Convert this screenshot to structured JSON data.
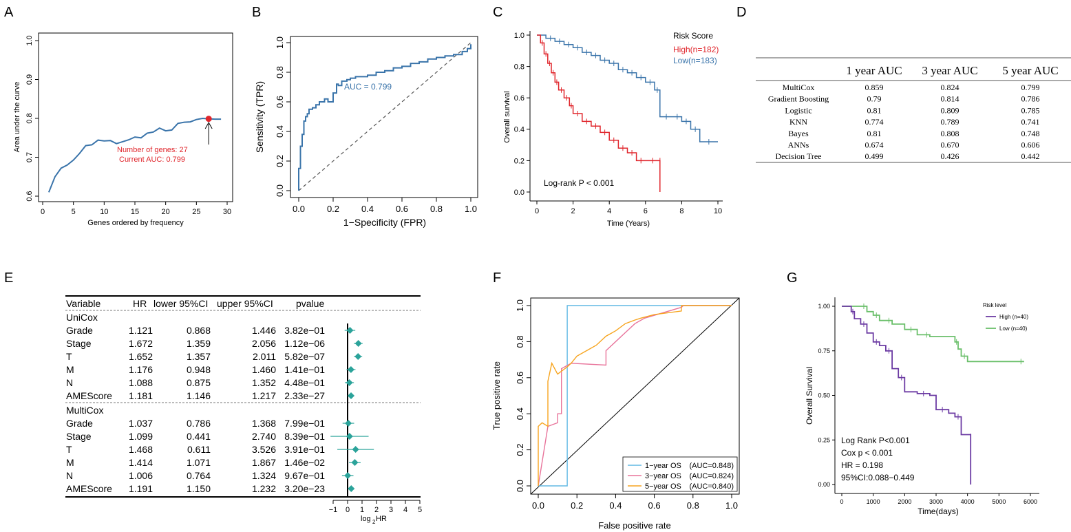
{
  "panel_letters": [
    "A",
    "B",
    "C",
    "D",
    "E",
    "F",
    "G"
  ],
  "colors": {
    "blue": "#3A74AA",
    "red": "#E0262C",
    "teal": "#2BA39A",
    "orange": "#F7A41E",
    "pink": "#E8739A",
    "cyan": "#61B9E4",
    "purple": "#6C3BA3",
    "green": "#6ABF6A"
  },
  "chart_data": [
    {
      "id": "A",
      "type": "line",
      "xlabel": "Genes ordered by frequency",
      "ylabel": "Area under the curve",
      "xlim": [
        0,
        30
      ],
      "ylim": [
        0.6,
        1.0
      ],
      "xticks": [
        "0",
        "5",
        "10",
        "15",
        "20",
        "25",
        "30"
      ],
      "yticks": [
        "0.6",
        "0.7",
        "0.8",
        "0.9",
        "1.0"
      ],
      "x": [
        1,
        2,
        3,
        4,
        5,
        6,
        7,
        8,
        9,
        10,
        11,
        12,
        13,
        14,
        15,
        16,
        17,
        18,
        19,
        20,
        21,
        22,
        23,
        24,
        25,
        26,
        27,
        28,
        29
      ],
      "y": [
        0.61,
        0.65,
        0.672,
        0.68,
        0.693,
        0.71,
        0.73,
        0.732,
        0.744,
        0.742,
        0.743,
        0.735,
        0.74,
        0.745,
        0.752,
        0.75,
        0.762,
        0.765,
        0.775,
        0.768,
        0.77,
        0.787,
        0.79,
        0.791,
        0.797,
        0.8,
        0.799,
        0.798,
        0.798
      ],
      "highlight": {
        "x": 27,
        "y": 0.799
      },
      "annotation_1": "Number of genes: 27",
      "annotation_2": "Current AUC: 0.799"
    },
    {
      "id": "B",
      "type": "line",
      "xlabel": "1−Specificity (FPR)",
      "ylabel": "Sensitivity (TPR)",
      "xlim": [
        0,
        1
      ],
      "ylim": [
        0,
        1
      ],
      "xticks": [
        "0.0",
        "0.2",
        "0.4",
        "0.6",
        "0.8",
        "1.0"
      ],
      "yticks": [
        "0.0",
        "0.2",
        "0.4",
        "0.6",
        "0.8",
        "1.0"
      ],
      "roc_x": [
        0,
        0,
        0.01,
        0.01,
        0.02,
        0.03,
        0.03,
        0.04,
        0.05,
        0.06,
        0.08,
        0.1,
        0.12,
        0.15,
        0.17,
        0.2,
        0.22,
        0.23,
        0.25,
        0.28,
        0.3,
        0.33,
        0.36,
        0.4,
        0.45,
        0.5,
        0.55,
        0.6,
        0.65,
        0.7,
        0.75,
        0.8,
        0.85,
        0.9,
        0.95,
        0.98,
        1.0
      ],
      "roc_y": [
        0,
        0.15,
        0.2,
        0.3,
        0.38,
        0.43,
        0.47,
        0.5,
        0.52,
        0.55,
        0.56,
        0.58,
        0.6,
        0.62,
        0.6,
        0.66,
        0.72,
        0.71,
        0.74,
        0.75,
        0.76,
        0.77,
        0.77,
        0.78,
        0.8,
        0.81,
        0.83,
        0.84,
        0.86,
        0.87,
        0.89,
        0.9,
        0.91,
        0.92,
        0.94,
        0.96,
        0.99
      ],
      "annotation": "AUC = 0.799"
    },
    {
      "id": "C",
      "type": "line",
      "title": "Risk Score",
      "xlabel": "Time (Years)",
      "ylabel": "Overall survival",
      "xlim": [
        0,
        10
      ],
      "ylim": [
        0,
        1
      ],
      "xticks": [
        "0",
        "2",
        "4",
        "6",
        "8",
        "10"
      ],
      "yticks": [
        "0.0",
        "0.2",
        "0.4",
        "0.6",
        "0.8",
        "1.0"
      ],
      "legend": [
        "High(n=182)",
        "Low(n=183)"
      ],
      "annotation": "Log-rank P < 0.001",
      "series": [
        {
          "name": "High(n=182)",
          "x": [
            0,
            0.2,
            0.4,
            0.6,
            0.8,
            1,
            1.2,
            1.5,
            1.8,
            2,
            2.5,
            3,
            3.5,
            4,
            4.5,
            5,
            5.5,
            6,
            6.8,
            6.8
          ],
          "y": [
            1,
            0.95,
            0.88,
            0.82,
            0.76,
            0.7,
            0.65,
            0.6,
            0.55,
            0.5,
            0.45,
            0.42,
            0.38,
            0.33,
            0.28,
            0.25,
            0.2,
            0.2,
            0.2,
            0
          ]
        },
        {
          "name": "Low(n=183)",
          "x": [
            0,
            0.5,
            1,
            1.5,
            2,
            2.5,
            3,
            3.5,
            4,
            4.5,
            5,
            5.5,
            6,
            6.5,
            6.8,
            7.5,
            8,
            8.5,
            9,
            10
          ],
          "y": [
            1,
            0.98,
            0.96,
            0.94,
            0.92,
            0.89,
            0.87,
            0.84,
            0.82,
            0.78,
            0.76,
            0.73,
            0.7,
            0.65,
            0.48,
            0.48,
            0.45,
            0.4,
            0.32,
            0.32
          ]
        }
      ]
    },
    {
      "id": "D",
      "type": "table",
      "columns": [
        "",
        "1 year AUC",
        "3 year AUC",
        "5 year AUC"
      ],
      "rows": [
        [
          "MultiCox",
          "0.859",
          "0.824",
          "0.799"
        ],
        [
          "Gradient Boosting",
          "0.79",
          "0.814",
          "0.786"
        ],
        [
          "Logistic",
          "0.81",
          "0.809",
          "0.785"
        ],
        [
          "KNN",
          "0.774",
          "0.789",
          "0.741"
        ],
        [
          "Bayes",
          "0.81",
          "0.808",
          "0.748"
        ],
        [
          "ANNs",
          "0.674",
          "0.670",
          "0.606"
        ],
        [
          "Decision Tree",
          "0.499",
          "0.426",
          "0.442"
        ]
      ]
    },
    {
      "id": "E",
      "type": "table",
      "columns": [
        "Variable",
        "HR",
        "lower 95%CI",
        "upper 95%CI",
        "pvalue"
      ],
      "groups": [
        {
          "name": "UniCox",
          "rows": [
            {
              "var": "Grade",
              "hr": "1.121",
              "lo": "0.868",
              "hi": "1.446",
              "p": "3.82e−01",
              "log2hr": 0.165,
              "log2lo": -0.204,
              "log2hi": 0.532
            },
            {
              "var": "Stage",
              "hr": "1.672",
              "lo": "1.359",
              "hi": "2.056",
              "p": "1.12e−06",
              "log2hr": 0.742,
              "log2lo": 0.442,
              "log2hi": 1.04
            },
            {
              "var": "T",
              "hr": "1.652",
              "lo": "1.357",
              "hi": "2.011",
              "p": "5.82e−07",
              "log2hr": 0.724,
              "log2lo": 0.44,
              "log2hi": 1.008
            },
            {
              "var": "M",
              "hr": "1.176",
              "lo": "0.948",
              "hi": "1.460",
              "p": "1.41e−01",
              "log2hr": 0.234,
              "log2lo": -0.077,
              "log2hi": 0.546
            },
            {
              "var": "N",
              "hr": "1.088",
              "lo": "0.875",
              "hi": "1.352",
              "p": "4.48e−01",
              "log2hr": 0.122,
              "log2lo": -0.193,
              "log2hi": 0.435
            },
            {
              "var": "AMEScore",
              "hr": "1.181",
              "lo": "1.146",
              "hi": "1.217",
              "p": "2.33e−27",
              "log2hr": 0.24,
              "log2lo": 0.197,
              "log2hi": 0.283
            }
          ]
        },
        {
          "name": "MultiCox",
          "rows": [
            {
              "var": "Grade",
              "hr": "1.037",
              "lo": "0.786",
              "hi": "1.368",
              "p": "7.99e−01",
              "log2hr": 0.052,
              "log2lo": -0.347,
              "log2hi": 0.452
            },
            {
              "var": "Stage",
              "hr": "1.099",
              "lo": "0.441",
              "hi": "2.740",
              "p": "8.39e−01",
              "log2hr": 0.136,
              "log2lo": -1.181,
              "log2hi": 1.454
            },
            {
              "var": "T",
              "hr": "1.468",
              "lo": "0.611",
              "hi": "3.526",
              "p": "3.91e−01",
              "log2hr": 0.554,
              "log2lo": -0.711,
              "log2hi": 1.818
            },
            {
              "var": "M",
              "hr": "1.414",
              "lo": "1.071",
              "hi": "1.867",
              "p": "1.46e−02",
              "log2hr": 0.5,
              "log2lo": 0.099,
              "log2hi": 0.901
            },
            {
              "var": "N",
              "hr": "1.006",
              "lo": "0.764",
              "hi": "1.324",
              "p": "9.67e−01",
              "log2hr": 0.009,
              "log2lo": -0.388,
              "log2hi": 0.405
            },
            {
              "var": "AMEScore",
              "hr": "1.191",
              "lo": "1.150",
              "hi": "1.232",
              "p": "3.20e−23",
              "log2hr": 0.252,
              "log2lo": 0.202,
              "log2hi": 0.301
            }
          ]
        }
      ],
      "xticks": [
        "−1",
        "0",
        "1",
        "2",
        "3",
        "4",
        "5"
      ],
      "xlabel_main": "log",
      "xlabel_sub": "2",
      "xlabel_tail": " HR"
    },
    {
      "id": "F",
      "type": "line",
      "xlabel": "False positive rate",
      "ylabel": "True positive rate",
      "xlim": [
        0,
        1
      ],
      "ylim": [
        0,
        1
      ],
      "xticks": [
        "0.0",
        "0.2",
        "0.4",
        "0.6",
        "0.8",
        "1.0"
      ],
      "yticks": [
        "0.0",
        "0.2",
        "0.4",
        "0.6",
        "0.8",
        "1.0"
      ],
      "series": [
        {
          "name": "1−year OS",
          "auc": "(AUC=0.848)",
          "x": [
            0,
            0.15,
            0.15,
            0.75,
            1.0
          ],
          "y": [
            0,
            0,
            1,
            1,
            1
          ]
        },
        {
          "name": "3−year OS",
          "auc": "(AUC=0.824)",
          "x": [
            0,
            0.05,
            0.1,
            0.1,
            0.12,
            0.12,
            0.17,
            0.17,
            0.35,
            0.35,
            0.45,
            0.5,
            0.5,
            0.55,
            0.74,
            0.75,
            1.0
          ],
          "y": [
            0,
            0.33,
            0.35,
            0.4,
            0.4,
            0.65,
            0.68,
            0.68,
            0.67,
            0.75,
            0.85,
            0.9,
            0.9,
            0.93,
            0.99,
            1,
            1
          ]
        },
        {
          "name": "5−year OS",
          "auc": "(AUC=0.840)",
          "x": [
            0,
            0,
            0.02,
            0.05,
            0.05,
            0.07,
            0.1,
            0.15,
            0.17,
            0.2,
            0.25,
            0.3,
            0.35,
            0.4,
            0.45,
            0.5,
            0.53,
            0.6,
            0.74,
            0.74,
            1.0
          ],
          "y": [
            0,
            0.33,
            0.35,
            0.33,
            0.58,
            0.68,
            0.62,
            0.66,
            0.68,
            0.72,
            0.75,
            0.78,
            0.83,
            0.86,
            0.9,
            0.92,
            0.93,
            0.95,
            0.97,
            1,
            1
          ]
        }
      ]
    },
    {
      "id": "G",
      "type": "line",
      "xlabel": "Time(days)",
      "ylabel": "Overall Survival",
      "xlim": [
        0,
        6000
      ],
      "ylim": [
        0,
        1
      ],
      "xticks": [
        "0",
        "1000",
        "2000",
        "3000",
        "4000",
        "5000",
        "6000"
      ],
      "yticks": [
        "0.00",
        "0.25",
        "0.50",
        "0.75",
        "1.00"
      ],
      "legend_title": "Risk level",
      "annotations": [
        "Log Rank P<0.001",
        "Cox p < 0.001",
        "HR = 0.198",
        "95%CI:0.088−0.449"
      ],
      "series": [
        {
          "name": "High (n=40)",
          "x": [
            0,
            300,
            400,
            600,
            800,
            1000,
            1200,
            1400,
            1600,
            1800,
            2000,
            2400,
            2800,
            3000,
            3400,
            3600,
            3800,
            4100,
            4100
          ],
          "y": [
            1,
            0.97,
            0.93,
            0.9,
            0.85,
            0.8,
            0.78,
            0.75,
            0.65,
            0.6,
            0.52,
            0.51,
            0.5,
            0.42,
            0.4,
            0.38,
            0.28,
            0.27,
            0
          ]
        },
        {
          "name": "Low (n=40)",
          "x": [
            0,
            600,
            800,
            1000,
            1200,
            1400,
            1600,
            2000,
            2400,
            2600,
            2800,
            3600,
            3700,
            3800,
            4000,
            5600,
            5800
          ],
          "y": [
            1,
            1,
            0.97,
            0.95,
            0.92,
            0.92,
            0.9,
            0.87,
            0.84,
            0.84,
            0.83,
            0.8,
            0.76,
            0.72,
            0.69,
            0.69,
            0.69
          ]
        }
      ]
    }
  ]
}
